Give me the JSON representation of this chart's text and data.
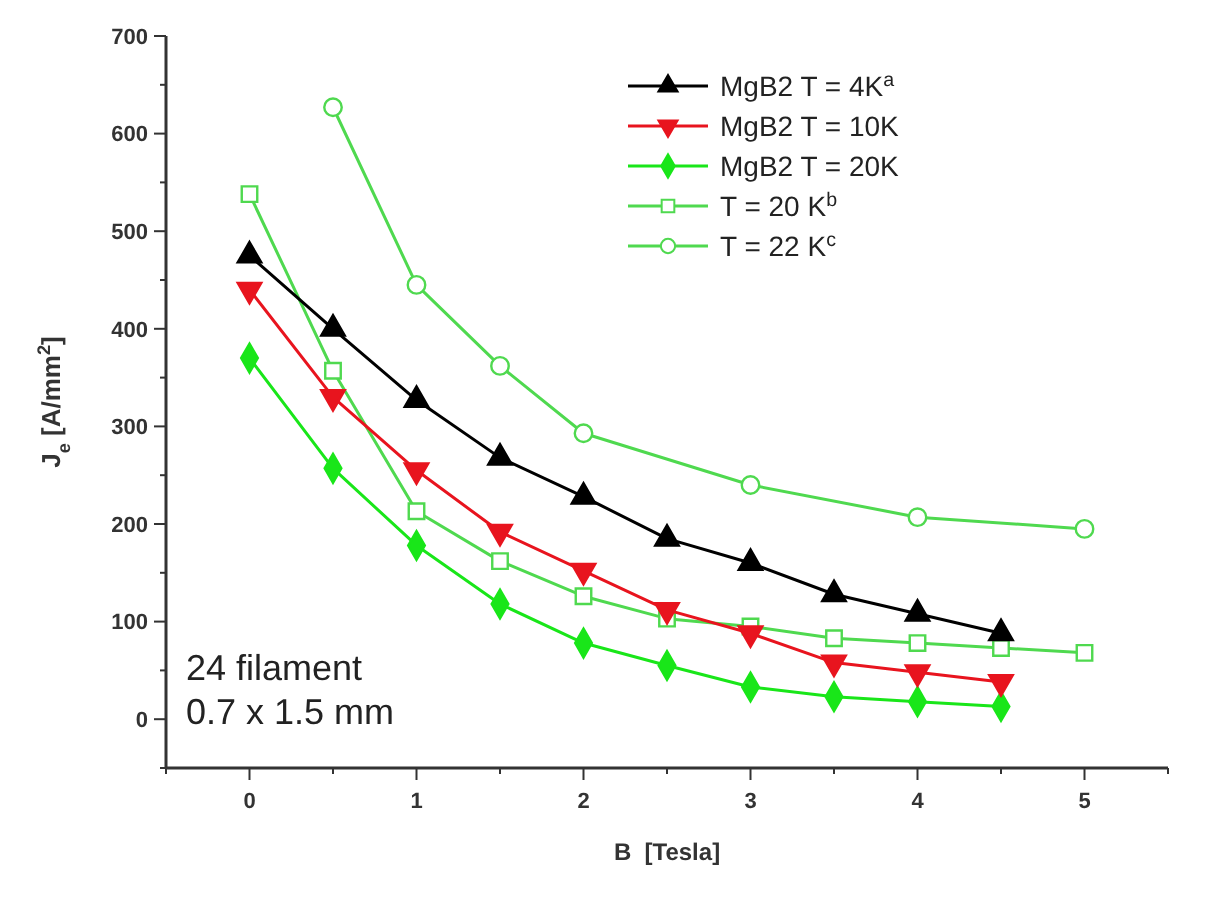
{
  "chart_data": {
    "type": "line",
    "xlabel": "B  [Tesla]",
    "ylabel": "J$_{e}$ [A/mm$^{2}$]",
    "xlim": [
      -0.5,
      5.5
    ],
    "xticks": [
      0,
      1,
      2,
      3,
      4,
      5
    ],
    "ylim": [
      -50,
      700
    ],
    "yticks": [
      0,
      100,
      200,
      300,
      400,
      500,
      600,
      700
    ],
    "legend": "top right",
    "grid": false,
    "line_style": "solid",
    "annotations": [
      "24 filament",
      "0.7 x 1.5 mm"
    ],
    "series": [
      {
        "name": "MgB2 T = 4K$^{a}$",
        "color": "#000000",
        "marker": "triangle",
        "x": [
          0,
          0.5,
          1,
          1.5,
          2,
          2.5,
          3,
          3.5,
          4,
          4.5
        ],
        "values": [
          475,
          400,
          327,
          268,
          228,
          185,
          160,
          128,
          108,
          88
        ]
      },
      {
        "name": "MgB2 T = 10K",
        "color": "#e8141e",
        "marker": "triangle-down",
        "x": [
          0,
          0.5,
          1,
          1.5,
          2,
          2.5,
          3,
          3.5,
          4,
          4.5
        ],
        "values": [
          440,
          330,
          255,
          192,
          152,
          112,
          88,
          58,
          48,
          38
        ]
      },
      {
        "name": "MgB2 T = 20K",
        "color": "#19e619",
        "marker": "diamond",
        "x": [
          0,
          0.5,
          1,
          1.5,
          2,
          2.5,
          3,
          3.5,
          4,
          4.5
        ],
        "values": [
          370,
          257,
          178,
          118,
          78,
          55,
          33,
          23,
          18,
          13
        ]
      },
      {
        "name": "T = 20 K$^{b}$",
        "color": "#4fd94f",
        "marker": "square",
        "x": [
          0,
          0.5,
          1,
          1.5,
          2,
          2.5,
          3,
          3.5,
          4,
          4.5,
          5
        ],
        "values": [
          538,
          357,
          213,
          162,
          126,
          103,
          95,
          83,
          78,
          73,
          68
        ]
      },
      {
        "name": "T = 22 K$^{c}$",
        "color": "#4fd94f",
        "marker": "circle",
        "x": [
          0.5,
          1,
          1.5,
          2,
          3,
          4,
          5
        ],
        "values": [
          627,
          445,
          362,
          293,
          240,
          207,
          195
        ]
      }
    ]
  }
}
